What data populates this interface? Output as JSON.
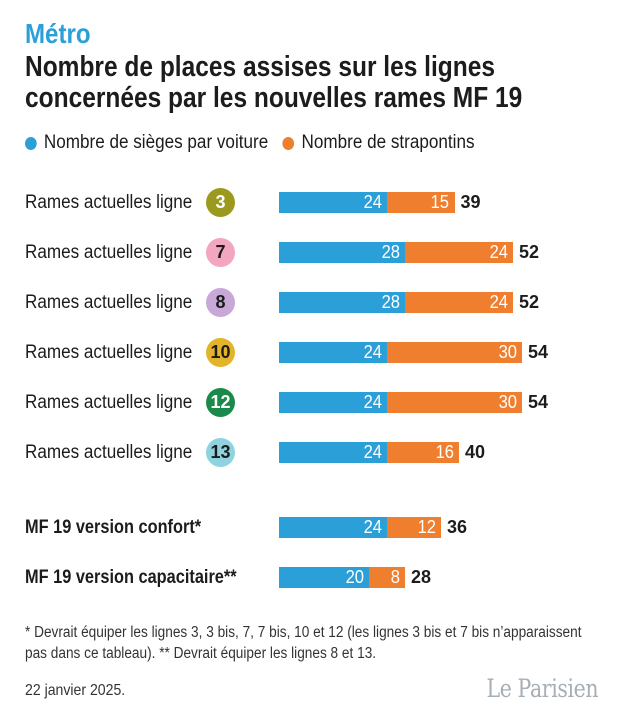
{
  "kicker": "Métro",
  "title": "Nombre de places assises sur les lignes concernées par les nouvelles rames MF 19",
  "colors": {
    "seats": "#2b9fd8",
    "strapontins": "#ef7f2e"
  },
  "chart_data": {
    "type": "bar",
    "orientation": "horizontal",
    "stacked": true,
    "title": "Nombre de places assises sur les lignes concernées par les nouvelles rames MF 19",
    "legend": [
      "Nombre de sièges par voiture",
      "Nombre de strapontins"
    ],
    "legend_position": "top",
    "categories": [
      {
        "label": "Rames actuelles ligne",
        "line": "3",
        "badge_color": "#9b9a1f",
        "badge_text_color": "#ffffff",
        "bold": false,
        "group": 0
      },
      {
        "label": "Rames actuelles ligne",
        "line": "7",
        "badge_color": "#f2a6bf",
        "badge_text_color": "#1c1c1c",
        "bold": false,
        "group": 0
      },
      {
        "label": "Rames actuelles ligne",
        "line": "8",
        "badge_color": "#c7a8d7",
        "badge_text_color": "#1c1c1c",
        "bold": false,
        "group": 0
      },
      {
        "label": "Rames actuelles ligne",
        "line": "10",
        "badge_color": "#e3b32a",
        "badge_text_color": "#1c1c1c",
        "bold": false,
        "group": 0
      },
      {
        "label": "Rames actuelles ligne",
        "line": "12",
        "badge_color": "#1a8a4a",
        "badge_text_color": "#ffffff",
        "bold": false,
        "group": 0
      },
      {
        "label": "Rames actuelles ligne",
        "line": "13",
        "badge_color": "#8fd3e0",
        "badge_text_color": "#1c1c1c",
        "bold": false,
        "group": 0
      },
      {
        "label": "MF 19 version confort*",
        "line": null,
        "bold": true,
        "group": 1
      },
      {
        "label": "MF 19 version capacitaire**",
        "line": null,
        "bold": true,
        "group": 1
      }
    ],
    "series": [
      {
        "name": "Nombre de sièges par voiture",
        "values": [
          24,
          28,
          28,
          24,
          24,
          24,
          24,
          20
        ]
      },
      {
        "name": "Nombre de strapontins",
        "values": [
          15,
          24,
          24,
          30,
          30,
          16,
          12,
          8
        ]
      }
    ],
    "totals": [
      39,
      52,
      52,
      54,
      54,
      40,
      36,
      28
    ],
    "xlim": [
      0,
      60
    ]
  },
  "footnote": "* Devrait équiper les lignes 3, 3 bis, 7, 7 bis, 10 et 12 (les lignes 3 bis et 7 bis n’apparaissent pas dans ce tableau). ** Devrait équiper les lignes 8 et 13.",
  "date": "22 janvier 2025.",
  "logo": "Le Parisien"
}
